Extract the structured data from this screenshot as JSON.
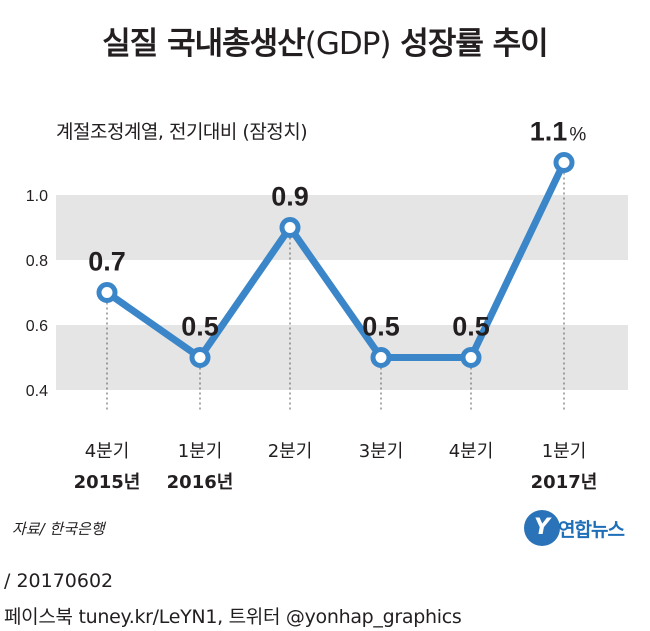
{
  "title": {
    "main": "실질 국내총생산",
    "paren": "(GDP)",
    "rest": "성장률 추이"
  },
  "subtitle": "계절조정계열, 전기대비 (잠정치)",
  "chart_data": {
    "type": "line",
    "title": "실질 국내총생산(GDP) 성장률 추이",
    "subtitle": "계절조정계열, 전기대비 (잠정치)",
    "unit": "%",
    "categories": [
      [
        "4분기",
        "2015년"
      ],
      [
        "1분기",
        "2016년"
      ],
      [
        "2분기",
        ""
      ],
      [
        "3분기",
        ""
      ],
      [
        "4분기",
        ""
      ],
      [
        "1분기",
        "2017년"
      ]
    ],
    "values": [
      0.7,
      0.5,
      0.9,
      0.5,
      0.5,
      1.1
    ],
    "data_labels": [
      "0.7",
      "0.5",
      "0.9",
      "0.5",
      "0.5",
      "1.1"
    ],
    "last_label_suffix": "%",
    "yticks": [
      "1.0",
      "0.8",
      "0.6",
      "0.4"
    ],
    "ytick_values": [
      1.0,
      0.8,
      0.6,
      0.4
    ],
    "ylim": [
      0.4,
      1.0
    ],
    "line_color": "#3a86c8",
    "band_color": "#e5e5e5"
  },
  "source": "자료/ 한국은행",
  "logo": {
    "mark": "Y",
    "text": "연합뉴스"
  },
  "date": "/ 20170602",
  "social": "페이스북 tuney.kr/LeYN1, 트위터 @yonhap_graphics"
}
